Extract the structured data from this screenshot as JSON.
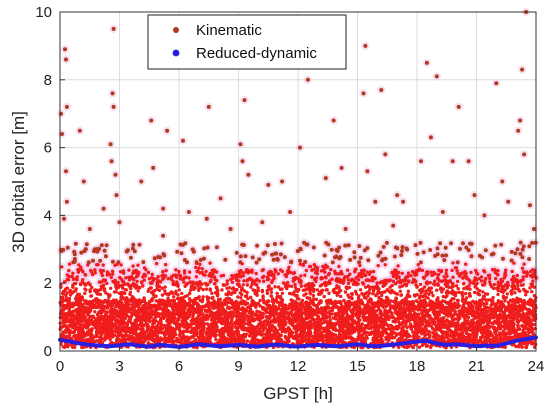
{
  "chart_data": {
    "type": "scatter",
    "title": "",
    "xlabel": "GPST [h]",
    "ylabel": "3D orbital error [m]",
    "xlim": [
      0,
      24
    ],
    "ylim": [
      0,
      10
    ],
    "xticks": [
      0,
      3,
      6,
      9,
      12,
      15,
      18,
      21,
      24
    ],
    "yticks": [
      0,
      2,
      4,
      6,
      8,
      10
    ],
    "grid": true,
    "legend_position": "top-center",
    "series": [
      {
        "name": "Kinematic",
        "style": "points",
        "color": "#cc2a1f",
        "halo_color": "#f2c6ea",
        "dense_cloud": {
          "x_start": 0,
          "x_end": 24,
          "y_min": 0.1,
          "y_max": 3.2,
          "count": 7000
        },
        "outliers": [
          {
            "x": 0.05,
            "y": 7.0
          },
          {
            "x": 0.25,
            "y": 8.9
          },
          {
            "x": 0.3,
            "y": 8.6
          },
          {
            "x": 0.35,
            "y": 7.2
          },
          {
            "x": 0.1,
            "y": 6.4
          },
          {
            "x": 0.3,
            "y": 5.3
          },
          {
            "x": 0.35,
            "y": 4.4
          },
          {
            "x": 0.2,
            "y": 3.9
          },
          {
            "x": 1.2,
            "y": 5.0
          },
          {
            "x": 1.0,
            "y": 6.5
          },
          {
            "x": 1.5,
            "y": 3.6
          },
          {
            "x": 2.2,
            "y": 4.2
          },
          {
            "x": 2.7,
            "y": 9.5
          },
          {
            "x": 2.65,
            "y": 7.6
          },
          {
            "x": 2.7,
            "y": 7.2
          },
          {
            "x": 2.55,
            "y": 6.1
          },
          {
            "x": 2.6,
            "y": 5.6
          },
          {
            "x": 2.8,
            "y": 5.2
          },
          {
            "x": 2.85,
            "y": 4.6
          },
          {
            "x": 3.0,
            "y": 3.8
          },
          {
            "x": 4.1,
            "y": 5.0
          },
          {
            "x": 4.6,
            "y": 6.8
          },
          {
            "x": 4.7,
            "y": 5.4
          },
          {
            "x": 5.2,
            "y": 4.2
          },
          {
            "x": 5.4,
            "y": 6.5
          },
          {
            "x": 5.2,
            "y": 3.4
          },
          {
            "x": 6.2,
            "y": 6.2
          },
          {
            "x": 6.5,
            "y": 4.1
          },
          {
            "x": 7.5,
            "y": 7.2
          },
          {
            "x": 7.4,
            "y": 3.9
          },
          {
            "x": 8.1,
            "y": 4.5
          },
          {
            "x": 8.6,
            "y": 3.6
          },
          {
            "x": 9.1,
            "y": 6.1
          },
          {
            "x": 9.2,
            "y": 5.6
          },
          {
            "x": 9.3,
            "y": 7.4
          },
          {
            "x": 9.5,
            "y": 5.2
          },
          {
            "x": 10.2,
            "y": 3.8
          },
          {
            "x": 10.5,
            "y": 4.9
          },
          {
            "x": 11.2,
            "y": 5.0
          },
          {
            "x": 11.6,
            "y": 4.1
          },
          {
            "x": 12.1,
            "y": 6.0
          },
          {
            "x": 12.5,
            "y": 8.0
          },
          {
            "x": 13.4,
            "y": 5.1
          },
          {
            "x": 13.8,
            "y": 6.8
          },
          {
            "x": 14.2,
            "y": 5.4
          },
          {
            "x": 14.4,
            "y": 3.6
          },
          {
            "x": 15.3,
            "y": 7.6
          },
          {
            "x": 15.4,
            "y": 9.0
          },
          {
            "x": 15.5,
            "y": 5.3
          },
          {
            "x": 15.9,
            "y": 4.4
          },
          {
            "x": 16.2,
            "y": 7.7
          },
          {
            "x": 16.4,
            "y": 5.8
          },
          {
            "x": 16.8,
            "y": 3.7
          },
          {
            "x": 17.0,
            "y": 4.6
          },
          {
            "x": 17.3,
            "y": 4.4
          },
          {
            "x": 18.2,
            "y": 5.6
          },
          {
            "x": 18.5,
            "y": 8.5
          },
          {
            "x": 18.7,
            "y": 6.3
          },
          {
            "x": 19.0,
            "y": 8.1
          },
          {
            "x": 19.3,
            "y": 4.1
          },
          {
            "x": 19.8,
            "y": 5.6
          },
          {
            "x": 20.1,
            "y": 7.2
          },
          {
            "x": 20.6,
            "y": 5.6
          },
          {
            "x": 20.9,
            "y": 4.6
          },
          {
            "x": 21.4,
            "y": 4.0
          },
          {
            "x": 22.0,
            "y": 7.9
          },
          {
            "x": 22.3,
            "y": 5.0
          },
          {
            "x": 22.6,
            "y": 4.4
          },
          {
            "x": 23.1,
            "y": 6.5
          },
          {
            "x": 23.2,
            "y": 6.8
          },
          {
            "x": 23.3,
            "y": 8.3
          },
          {
            "x": 23.5,
            "y": 10.0
          },
          {
            "x": 23.4,
            "y": 5.8
          },
          {
            "x": 23.7,
            "y": 4.3
          },
          {
            "x": 23.9,
            "y": 3.6
          }
        ]
      },
      {
        "name": "Reduced-dynamic",
        "style": "thick-line",
        "color": "#2a1ee0",
        "points": [
          {
            "x": 0.0,
            "y": 0.33
          },
          {
            "x": 0.5,
            "y": 0.28
          },
          {
            "x": 1.0,
            "y": 0.22
          },
          {
            "x": 1.5,
            "y": 0.18
          },
          {
            "x": 2.0,
            "y": 0.16
          },
          {
            "x": 2.5,
            "y": 0.14
          },
          {
            "x": 3.0,
            "y": 0.17
          },
          {
            "x": 3.5,
            "y": 0.2
          },
          {
            "x": 4.0,
            "y": 0.16
          },
          {
            "x": 4.5,
            "y": 0.13
          },
          {
            "x": 5.0,
            "y": 0.18
          },
          {
            "x": 5.5,
            "y": 0.15
          },
          {
            "x": 6.0,
            "y": 0.12
          },
          {
            "x": 6.5,
            "y": 0.16
          },
          {
            "x": 7.0,
            "y": 0.2
          },
          {
            "x": 7.5,
            "y": 0.17
          },
          {
            "x": 8.0,
            "y": 0.14
          },
          {
            "x": 8.5,
            "y": 0.16
          },
          {
            "x": 9.0,
            "y": 0.18
          },
          {
            "x": 9.5,
            "y": 0.15
          },
          {
            "x": 10.0,
            "y": 0.13
          },
          {
            "x": 10.5,
            "y": 0.17
          },
          {
            "x": 11.0,
            "y": 0.19
          },
          {
            "x": 11.5,
            "y": 0.15
          },
          {
            "x": 12.0,
            "y": 0.13
          },
          {
            "x": 12.5,
            "y": 0.16
          },
          {
            "x": 13.0,
            "y": 0.18
          },
          {
            "x": 13.5,
            "y": 0.15
          },
          {
            "x": 14.0,
            "y": 0.14
          },
          {
            "x": 14.5,
            "y": 0.17
          },
          {
            "x": 15.0,
            "y": 0.2
          },
          {
            "x": 15.5,
            "y": 0.16
          },
          {
            "x": 16.0,
            "y": 0.14
          },
          {
            "x": 16.5,
            "y": 0.17
          },
          {
            "x": 17.0,
            "y": 0.2
          },
          {
            "x": 17.5,
            "y": 0.24
          },
          {
            "x": 18.0,
            "y": 0.28
          },
          {
            "x": 18.5,
            "y": 0.3
          },
          {
            "x": 19.0,
            "y": 0.22
          },
          {
            "x": 19.5,
            "y": 0.18
          },
          {
            "x": 20.0,
            "y": 0.2
          },
          {
            "x": 20.5,
            "y": 0.17
          },
          {
            "x": 21.0,
            "y": 0.14
          },
          {
            "x": 21.5,
            "y": 0.16
          },
          {
            "x": 22.0,
            "y": 0.15
          },
          {
            "x": 22.5,
            "y": 0.22
          },
          {
            "x": 23.0,
            "y": 0.3
          },
          {
            "x": 23.5,
            "y": 0.35
          },
          {
            "x": 24.0,
            "y": 0.4
          }
        ]
      }
    ]
  }
}
